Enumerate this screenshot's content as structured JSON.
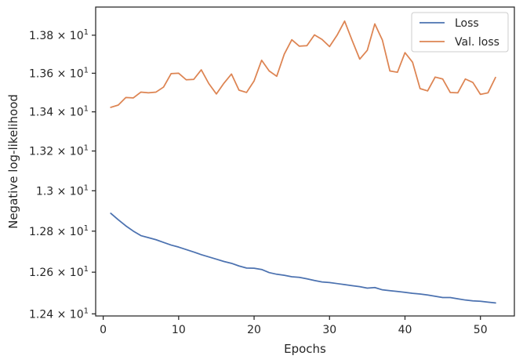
{
  "chart_data": {
    "type": "line",
    "xlabel": "Epochs",
    "ylabel": "Negative log-likelihood",
    "xlim": [
      -1,
      54.5
    ],
    "ylim": [
      12.39,
      13.95
    ],
    "yscale": "log",
    "grid": false,
    "legend_position": "top-right",
    "x_ticks": [
      0,
      10,
      20,
      30,
      40,
      50
    ],
    "x_tick_labels": [
      "0",
      "10",
      "20",
      "30",
      "40",
      "50"
    ],
    "y_ticks": [
      12.4,
      12.6,
      12.8,
      13.0,
      13.2,
      13.4,
      13.6,
      13.8
    ],
    "y_tick_labels": [
      {
        "mantissa": "1.24",
        "base": "10",
        "exp": "1"
      },
      {
        "mantissa": "1.26",
        "base": "10",
        "exp": "1"
      },
      {
        "mantissa": "1.28",
        "base": "10",
        "exp": "1"
      },
      {
        "mantissa": "1.3",
        "base": "10",
        "exp": "1"
      },
      {
        "mantissa": "1.32",
        "base": "10",
        "exp": "1"
      },
      {
        "mantissa": "1.34",
        "base": "10",
        "exp": "1"
      },
      {
        "mantissa": "1.36",
        "base": "10",
        "exp": "1"
      },
      {
        "mantissa": "1.38",
        "base": "10",
        "exp": "1"
      }
    ],
    "x": [
      1,
      2,
      3,
      4,
      5,
      6,
      7,
      8,
      9,
      10,
      11,
      12,
      13,
      14,
      15,
      16,
      17,
      18,
      19,
      20,
      21,
      22,
      23,
      24,
      25,
      26,
      27,
      28,
      29,
      30,
      31,
      32,
      33,
      34,
      35,
      36,
      37,
      38,
      39,
      40,
      41,
      42,
      43,
      44,
      45,
      46,
      47,
      48,
      49,
      50,
      51,
      52
    ],
    "series": [
      {
        "name": "Loss",
        "color": "#4c72b0",
        "values": [
          12.888,
          12.856,
          12.826,
          12.8,
          12.778,
          12.768,
          12.758,
          12.745,
          12.732,
          12.722,
          12.71,
          12.698,
          12.685,
          12.674,
          12.663,
          12.652,
          12.643,
          12.63,
          12.62,
          12.619,
          12.613,
          12.598,
          12.59,
          12.585,
          12.578,
          12.575,
          12.568,
          12.56,
          12.553,
          12.55,
          12.545,
          12.54,
          12.535,
          12.53,
          12.523,
          12.526,
          12.515,
          12.511,
          12.507,
          12.503,
          12.498,
          12.495,
          12.49,
          12.484,
          12.478,
          12.478,
          12.472,
          12.466,
          12.462,
          12.46,
          12.456,
          12.452
        ]
      },
      {
        "name": "Val. loss",
        "color": "#dd8452",
        "values": [
          13.423,
          13.435,
          13.474,
          13.472,
          13.502,
          13.498,
          13.502,
          13.528,
          13.598,
          13.6,
          13.566,
          13.568,
          13.618,
          13.546,
          13.492,
          13.548,
          13.596,
          13.512,
          13.5,
          13.56,
          13.668,
          13.612,
          13.584,
          13.7,
          13.776,
          13.742,
          13.745,
          13.802,
          13.778,
          13.74,
          13.8,
          13.875,
          13.772,
          13.674,
          13.72,
          13.86,
          13.775,
          13.612,
          13.605,
          13.708,
          13.658,
          13.52,
          13.508,
          13.58,
          13.57,
          13.5,
          13.498,
          13.57,
          13.552,
          13.49,
          13.498,
          13.578
        ]
      }
    ]
  }
}
